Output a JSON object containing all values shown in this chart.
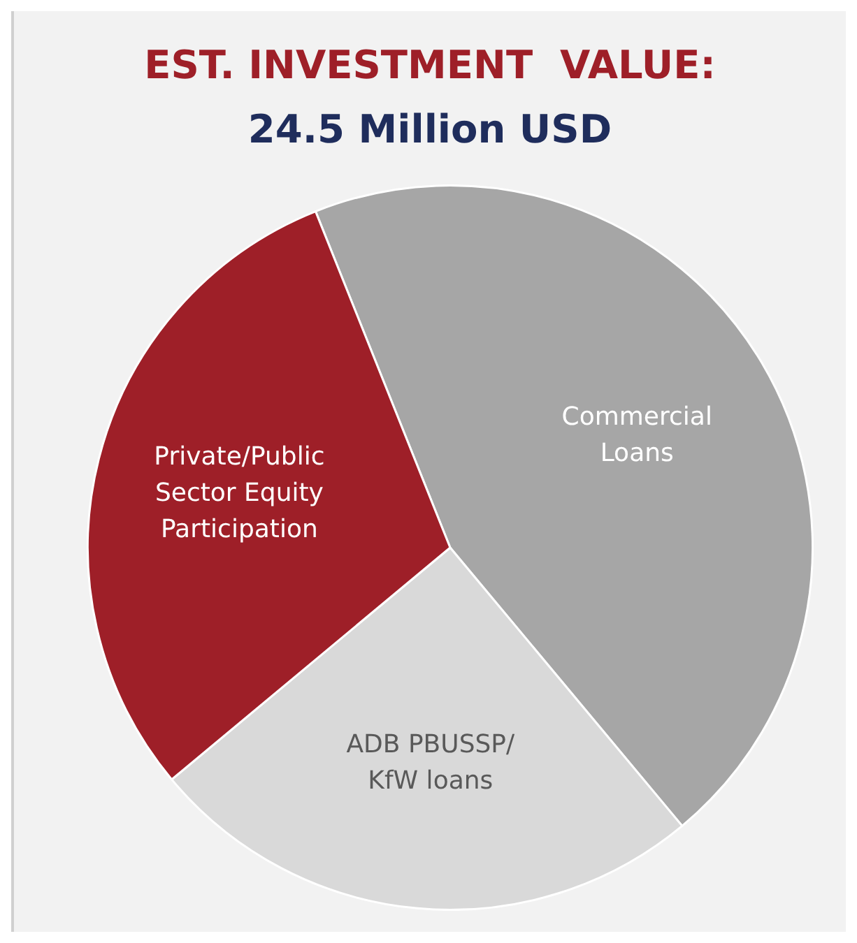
{
  "chart_data": {
    "type": "pie",
    "title": "EST. INVESTMENT  VALUE:",
    "subtitle": "24.5 Million USD",
    "categories": [
      "Commercial Loans",
      "ADB PBUSSP/ KfW loans",
      "Private/Public Sector Equity Participation"
    ],
    "values": [
      45,
      25,
      30
    ],
    "colors": [
      "#a6a6a6",
      "#d9d9d9",
      "#9e1f28"
    ]
  }
}
